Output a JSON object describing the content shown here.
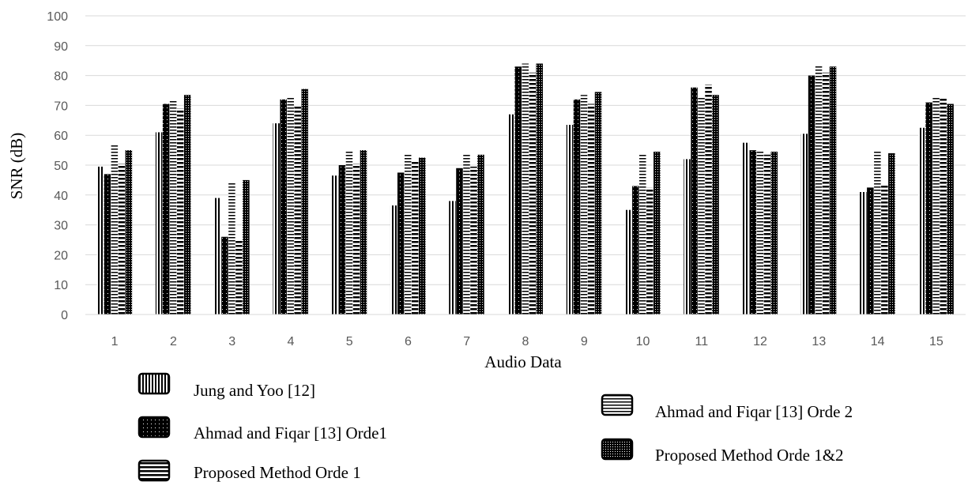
{
  "chart_data": {
    "type": "bar",
    "title": "",
    "xlabel": "Audio Data",
    "ylabel": "SNR (dB)",
    "ylim": [
      0,
      100
    ],
    "yticks": [
      0,
      10,
      20,
      30,
      40,
      50,
      60,
      70,
      80,
      90,
      100
    ],
    "grid": true,
    "legend_position": "bottom",
    "categories": [
      "1",
      "2",
      "3",
      "4",
      "5",
      "6",
      "7",
      "8",
      "9",
      "10",
      "11",
      "12",
      "13",
      "14",
      "15"
    ],
    "series": [
      {
        "name": "Jung and Yoo [12]",
        "pattern": "vertical-lines",
        "values": [
          49.5,
          61,
          39,
          64,
          46.5,
          36.5,
          38,
          67,
          63.5,
          35,
          52,
          57.5,
          60.5,
          41,
          62.5
        ]
      },
      {
        "name": "Ahmad and Fiqar [13] Orde1",
        "pattern": "solid-dots",
        "values": [
          47,
          70.5,
          26,
          72,
          50,
          47.5,
          49,
          83,
          72,
          43,
          76,
          55,
          80,
          42.5,
          71
        ]
      },
      {
        "name": "Ahmad and Fiqar [13] Orde 2",
        "pattern": "horizontal-lines",
        "values": [
          57,
          71.5,
          44.5,
          72.5,
          54.5,
          53.5,
          53.5,
          84,
          73.5,
          53.5,
          73,
          54.5,
          83.5,
          54.5,
          73
        ]
      },
      {
        "name": "Proposed Method Orde 1",
        "pattern": "thick-horizontal-lines",
        "values": [
          50.5,
          69,
          25,
          70,
          50.5,
          51.5,
          49.5,
          81,
          70.5,
          42.5,
          77,
          53.5,
          81,
          43.5,
          72.5
        ]
      },
      {
        "name": "Proposed Method Orde 1&2",
        "pattern": "dense-dots",
        "values": [
          55,
          73.5,
          45,
          75.5,
          55,
          52.5,
          53.5,
          84,
          74.5,
          54.5,
          73.5,
          54.5,
          83,
          54,
          70.5
        ]
      }
    ]
  }
}
